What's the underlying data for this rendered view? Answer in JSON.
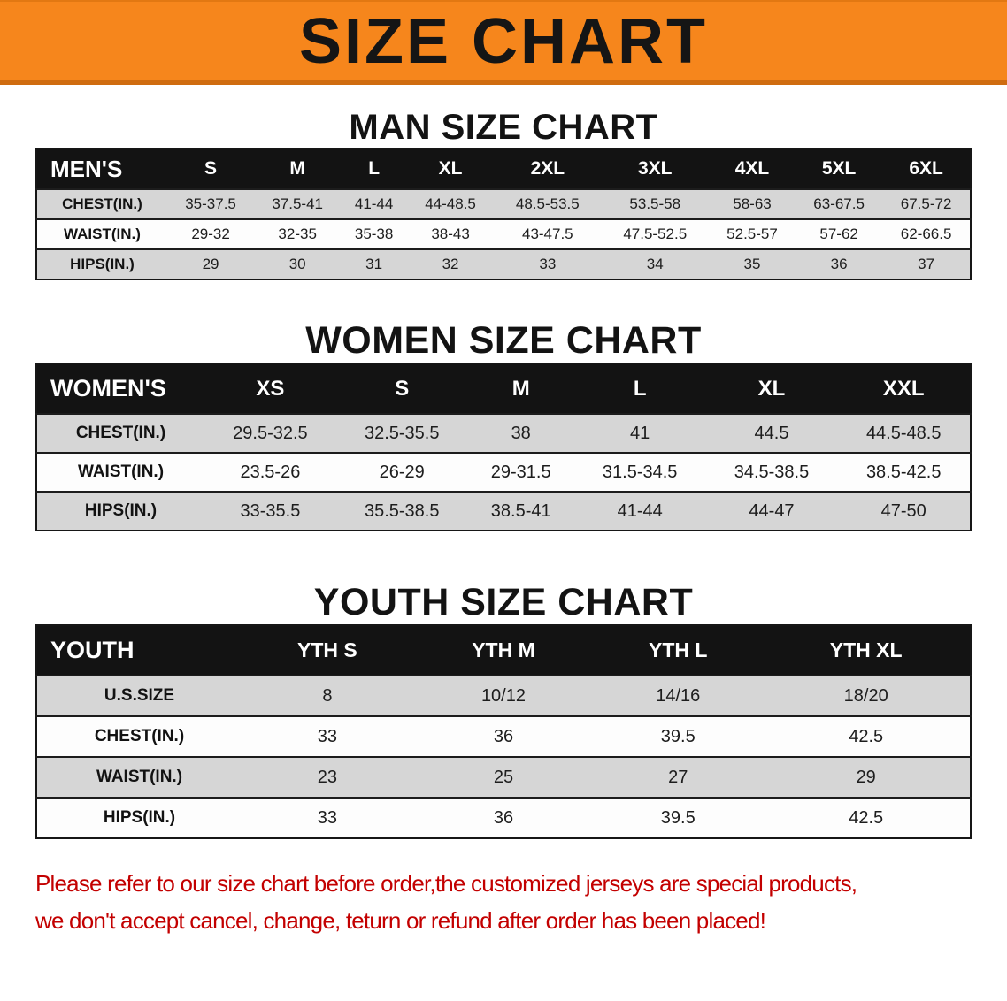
{
  "banner": {
    "title": "SIZE CHART",
    "bg_color": "#f6861c"
  },
  "sections": {
    "men": {
      "heading": "MAN SIZE CHART",
      "table": {
        "header": [
          "MEN'S",
          "S",
          "M",
          "L",
          "XL",
          "2XL",
          "3XL",
          "4XL",
          "5XL",
          "6XL"
        ],
        "rows": [
          {
            "label": "CHEST(IN.)",
            "values": [
              "35-37.5",
              "37.5-41",
              "41-44",
              "44-48.5",
              "48.5-53.5",
              "53.5-58",
              "58-63",
              "63-67.5",
              "67.5-72"
            ]
          },
          {
            "label": "WAIST(IN.)",
            "values": [
              "29-32",
              "32-35",
              "35-38",
              "38-43",
              "43-47.5",
              "47.5-52.5",
              "52.5-57",
              "57-62",
              "62-66.5"
            ]
          },
          {
            "label": "HIPS(IN.)",
            "values": [
              "29",
              "30",
              "31",
              "32",
              "33",
              "34",
              "35",
              "36",
              "37"
            ]
          }
        ]
      }
    },
    "women": {
      "heading": "WOMEN SIZE CHART",
      "table": {
        "header": [
          "WOMEN'S",
          "XS",
          "S",
          "M",
          "L",
          "XL",
          "XXL"
        ],
        "rows": [
          {
            "label": "CHEST(IN.)",
            "values": [
              "29.5-32.5",
              "32.5-35.5",
              "38",
              "41",
              "44.5",
              "44.5-48.5"
            ]
          },
          {
            "label": "WAIST(IN.)",
            "values": [
              "23.5-26",
              "26-29",
              "29-31.5",
              "31.5-34.5",
              "34.5-38.5",
              "38.5-42.5"
            ]
          },
          {
            "label": "HIPS(IN.)",
            "values": [
              "33-35.5",
              "35.5-38.5",
              "38.5-41",
              "41-44",
              "44-47",
              "47-50"
            ]
          }
        ]
      }
    },
    "youth": {
      "heading": "YOUTH SIZE CHART",
      "table": {
        "header": [
          "YOUTH",
          "YTH S",
          "YTH M",
          "YTH L",
          "YTH XL"
        ],
        "rows": [
          {
            "label": "U.S.SIZE",
            "values": [
              "8",
              "10/12",
              "14/16",
              "18/20"
            ]
          },
          {
            "label": "CHEST(IN.)",
            "values": [
              "33",
              "36",
              "39.5",
              "42.5"
            ]
          },
          {
            "label": "WAIST(IN.)",
            "values": [
              "23",
              "25",
              "27",
              "29"
            ]
          },
          {
            "label": "HIPS(IN.)",
            "values": [
              "33",
              "36",
              "39.5",
              "42.5"
            ]
          }
        ]
      }
    }
  },
  "disclaimer": {
    "color": "#c30000",
    "lines": [
      "Please refer to our size chart before order,the customized jerseys are special products,",
      "we don't accept cancel, change, teturn or refund after order has been placed!"
    ]
  }
}
